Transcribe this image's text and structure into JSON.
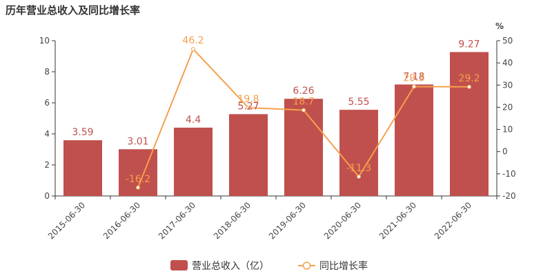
{
  "title": "历年营业总收入及同比增长率",
  "chart_data": {
    "type": "bar",
    "categories": [
      "2015-06-30",
      "2016-06-30",
      "2017-06-30",
      "2018-06-30",
      "2019-06-30",
      "2020-06-30",
      "2021-06-30",
      "2022-06-30"
    ],
    "series": [
      {
        "name": "营业总收入（亿）",
        "type": "bar",
        "axis": "left",
        "values": [
          3.59,
          3.01,
          4.4,
          5.27,
          6.26,
          5.55,
          7.18,
          9.27
        ],
        "labels": [
          "3.59",
          "3.01",
          "4.4",
          "5.27",
          "6.26",
          "5.55",
          "7.18",
          "9.27"
        ],
        "color": "#c0504d"
      },
      {
        "name": "同比增长率",
        "type": "line",
        "axis": "right",
        "values": [
          null,
          -16.2,
          46.2,
          19.8,
          18.7,
          -11.3,
          29.3,
          29.2
        ],
        "labels": [
          "",
          "-16.2",
          "46.2",
          "19.8",
          "18.7",
          "-11.3",
          "29.3",
          "29.2"
        ],
        "color": "#f5a04c"
      }
    ],
    "y_left": {
      "min": 0,
      "max": 10,
      "ticks": [
        "0",
        "2",
        "4",
        "6",
        "8",
        "10"
      ]
    },
    "y_right": {
      "min": -20,
      "max": 50,
      "unit": "%",
      "ticks": [
        "-20",
        "-10",
        "0",
        "10",
        "20",
        "30",
        "40",
        "50"
      ]
    },
    "legend_position": "bottom",
    "grid": false
  }
}
